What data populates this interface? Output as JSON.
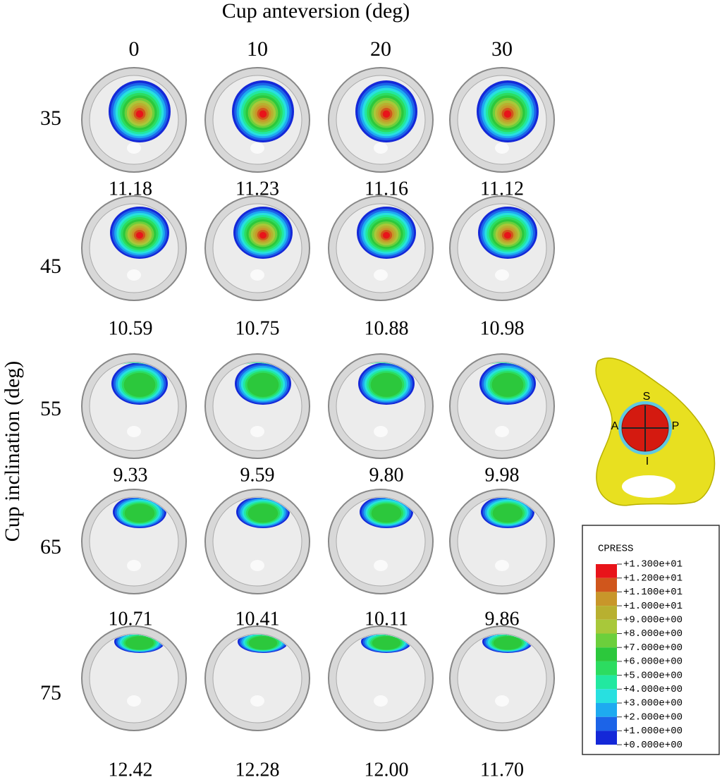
{
  "title": "Cup anteversion (deg)",
  "y_label": "Cup inclination (deg)",
  "columns": [
    "0",
    "10",
    "20",
    "30"
  ],
  "rows": [
    {
      "label": "35",
      "values": [
        "11.18",
        "11.23",
        "11.16",
        "11.12"
      ]
    },
    {
      "label": "45",
      "values": [
        "10.59",
        "10.75",
        "10.88",
        "10.98"
      ]
    },
    {
      "label": "55",
      "values": [
        "9.33",
        "9.59",
        "9.80",
        "9.98"
      ]
    },
    {
      "label": "65",
      "values": [
        "10.71",
        "10.41",
        "10.11",
        "9.86"
      ]
    },
    {
      "label": "75",
      "values": [
        "12.42",
        "12.28",
        "12.00",
        "11.70"
      ]
    }
  ],
  "legend": {
    "title": "CPRESS",
    "labels": [
      "+1.300e+01",
      "+1.200e+01",
      "+1.100e+01",
      "+1.000e+01",
      "+9.000e+00",
      "+8.000e+00",
      "+7.000e+00",
      "+6.000e+00",
      "+5.000e+00",
      "+4.000e+00",
      "+3.000e+00",
      "+2.000e+00",
      "+1.000e+00",
      "+0.000e+00"
    ],
    "colors": [
      "#e8141a",
      "#d0561c",
      "#c8962a",
      "#b8b030",
      "#a8c83a",
      "#6ccf3c",
      "#2cc83c",
      "#2cdc60",
      "#22e8a0",
      "#28e0e0",
      "#1eaaf0",
      "#1c64e8",
      "#1428d8"
    ]
  },
  "pelvis": {
    "labels": [
      "S",
      "A",
      "P",
      "I"
    ]
  }
}
